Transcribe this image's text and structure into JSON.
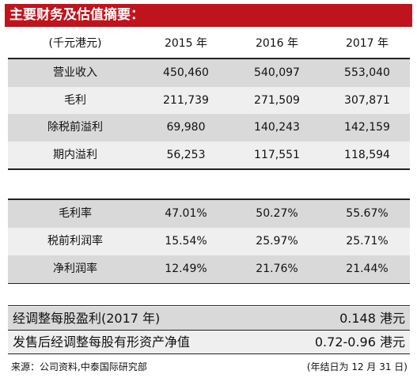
{
  "header": {
    "title": "主要财务及估值摘要："
  },
  "table1": {
    "columns": [
      "(千元港元)",
      "2015 年",
      "2016 年",
      "2017 年"
    ],
    "rows": [
      [
        "营业收入",
        "450,460",
        "540,097",
        "553,040"
      ],
      [
        "毛利",
        "211,739",
        "271,509",
        "307,871"
      ],
      [
        "除税前溢利",
        "69,980",
        "140,243",
        "142,159"
      ],
      [
        "期内溢利",
        "56,253",
        "117,551",
        "118,594"
      ]
    ]
  },
  "table2": {
    "rows": [
      [
        "毛利率",
        "47.01%",
        "50.27%",
        "55.67%"
      ],
      [
        "税前利润率",
        "15.54%",
        "25.97%",
        "25.71%"
      ],
      [
        "净利润率",
        "12.49%",
        "21.76%",
        "21.44%"
      ]
    ]
  },
  "valuation": {
    "rows": [
      [
        "经调整每股盈利(2017 年)",
        "0.148 港元"
      ],
      [
        "发售后经调整每股有形资产净值",
        "0.72-0.96 港元"
      ]
    ]
  },
  "footer": {
    "source": "来源：公司资料,中泰国际研究部",
    "note": "(年结日为 12 月 31 日)"
  }
}
